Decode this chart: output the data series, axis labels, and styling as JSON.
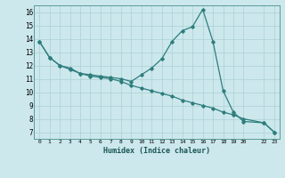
{
  "title": "",
  "xlabel": "Humidex (Indice chaleur)",
  "bg_color": "#cce8ec",
  "grid_color": "#b0d4d8",
  "line_color": "#2e7d7d",
  "line1_x": [
    0,
    1,
    2,
    3,
    4,
    5,
    6,
    7,
    8,
    9,
    10,
    11,
    12,
    13,
    14,
    15,
    16,
    17,
    18,
    19,
    20,
    22,
    23
  ],
  "line1_y": [
    13.8,
    12.6,
    12.0,
    11.8,
    11.4,
    11.3,
    11.2,
    11.1,
    11.0,
    10.8,
    11.3,
    11.8,
    12.5,
    13.8,
    14.6,
    14.9,
    16.2,
    13.8,
    10.1,
    8.5,
    7.8,
    7.7,
    7.0
  ],
  "line2_x": [
    0,
    1,
    2,
    3,
    4,
    5,
    6,
    7,
    8,
    9,
    10,
    11,
    12,
    13,
    14,
    15,
    16,
    17,
    18,
    19,
    20,
    22,
    23
  ],
  "line2_y": [
    13.8,
    12.6,
    12.0,
    11.7,
    11.4,
    11.2,
    11.1,
    11.0,
    10.8,
    10.5,
    10.3,
    10.1,
    9.9,
    9.7,
    9.4,
    9.2,
    9.0,
    8.8,
    8.5,
    8.3,
    8.0,
    7.7,
    7.0
  ],
  "ylim": [
    6.5,
    16.5
  ],
  "yticks": [
    7,
    8,
    9,
    10,
    11,
    12,
    13,
    14,
    15,
    16
  ],
  "xticks": [
    0,
    1,
    2,
    3,
    4,
    5,
    6,
    7,
    8,
    9,
    10,
    11,
    12,
    13,
    14,
    15,
    16,
    17,
    18,
    19,
    20,
    22,
    23
  ],
  "xtick_labels": [
    "0",
    "1",
    "2",
    "3",
    "4",
    "5",
    "6",
    "7",
    "8",
    "9",
    "10",
    "11",
    "12",
    "13",
    "14",
    "15",
    "16",
    "17",
    "18",
    "19",
    "20",
    "22",
    "23"
  ]
}
